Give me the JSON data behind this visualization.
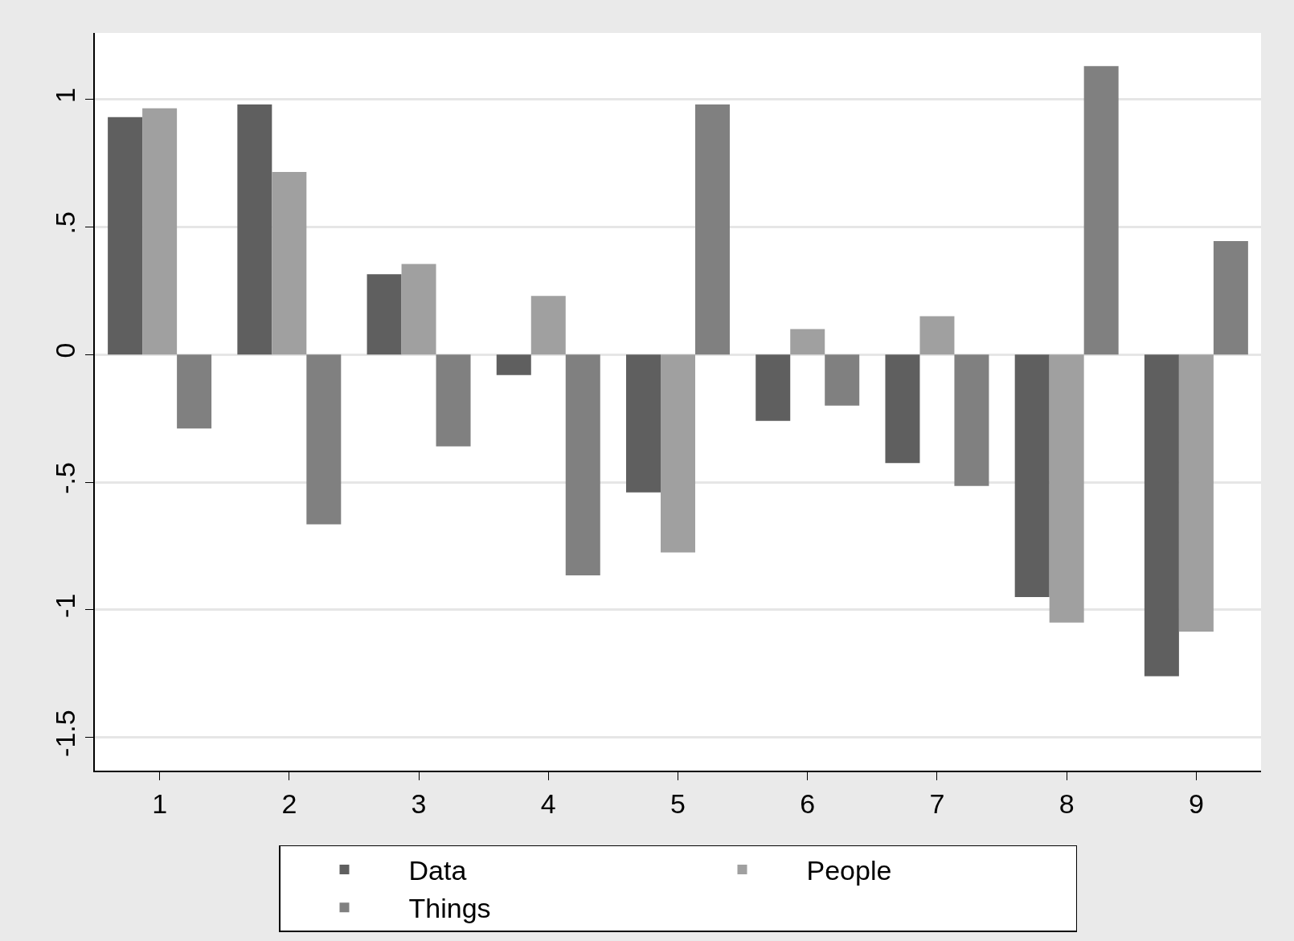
{
  "chart_data": {
    "type": "bar",
    "categories": [
      "1",
      "2",
      "3",
      "4",
      "5",
      "6",
      "7",
      "8",
      "9"
    ],
    "series": [
      {
        "name": "Data",
        "color": "#5f5f5f",
        "values": [
          0.93,
          0.98,
          0.315,
          -0.08,
          -0.54,
          -0.26,
          -0.425,
          -0.95,
          -1.26
        ]
      },
      {
        "name": "People",
        "color": "#a0a0a0",
        "values": [
          0.965,
          0.715,
          0.355,
          0.23,
          -0.775,
          0.1,
          0.15,
          -1.05,
          -1.085
        ]
      },
      {
        "name": "Things",
        "color": "#808080",
        "values": [
          -0.29,
          -0.665,
          -0.36,
          -0.865,
          0.98,
          -0.2,
          -0.515,
          1.13,
          0.445
        ]
      }
    ],
    "ylim": [
      -1.63,
      1.26
    ],
    "yticks": [
      {
        "value": -1.5,
        "label": "-1.5"
      },
      {
        "value": -1,
        "label": "-1"
      },
      {
        "value": -0.5,
        "label": "-.5"
      },
      0,
      {
        "value": 0.5,
        "label": ".5"
      },
      1
    ],
    "grid": "y",
    "legend": "bottom"
  }
}
